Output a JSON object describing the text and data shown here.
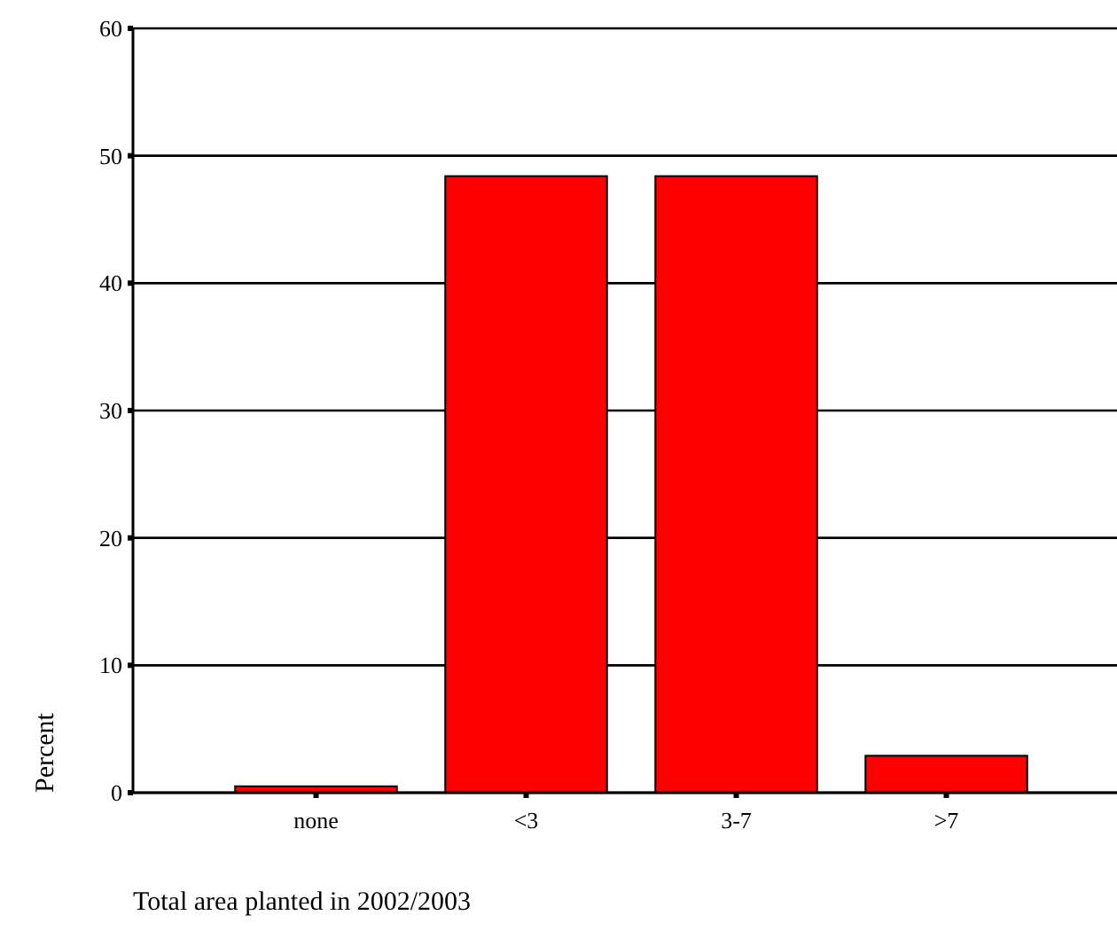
{
  "chart_data": {
    "type": "bar",
    "xlabel": "Total area planted in 2002/2003",
    "ylabel": "Percent",
    "categories": [
      "none",
      "<3",
      "3-7",
      ">7"
    ],
    "values": [
      0.5,
      48.4,
      48.4,
      2.9
    ],
    "color": "#ff0000",
    "ylim": [
      0,
      60
    ],
    "yticks": [
      0,
      10,
      20,
      30,
      40,
      50,
      60
    ],
    "grid": "y"
  }
}
